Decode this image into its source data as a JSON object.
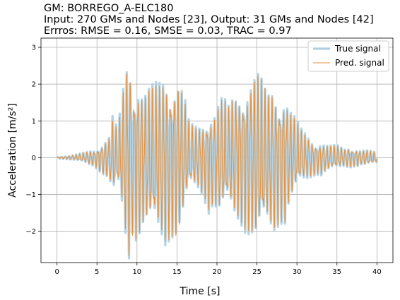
{
  "title_lines": [
    "GM: BORREGO_A-ELC180",
    "Input: 270 GMs and Nodes [23], Output: 31 GMs and Nodes [42]",
    "Errros: RMSE = 0.16, SMSE = 0.03, TRAC = 0.97"
  ],
  "chart_data": {
    "type": "line",
    "title": "GM: BORREGO_A-ELC180\nInput: 270 GMs and Nodes [23], Output: 31 GMs and Nodes [42]\nErrros: RMSE = 0.16, SMSE = 0.03, TRAC = 0.97",
    "xlabel": "Time [s]",
    "ylabel": "Acceleration [m/s²]",
    "xlim": [
      -2,
      42
    ],
    "ylim": [
      -2.85,
      3.25
    ],
    "x_ticks": [
      0,
      5,
      10,
      15,
      20,
      25,
      30,
      35,
      40
    ],
    "y_ticks": [
      -2,
      -1,
      0,
      1,
      2,
      3
    ],
    "x_tick_labels": [
      "0",
      "5",
      "10",
      "15",
      "20",
      "25",
      "30",
      "35",
      "40"
    ],
    "y_tick_labels": [
      "−2",
      "−1",
      "0",
      "1",
      "2",
      "3"
    ],
    "grid": true,
    "legend_position": "top-right",
    "series": [
      {
        "name": "True signal",
        "color": "#aecfe3",
        "x": [
          0,
          0.5,
          1,
          1.5,
          2,
          2.5,
          3,
          3.5,
          4,
          4.5,
          5,
          5.5,
          6,
          6.5,
          7,
          7.5,
          8,
          8.5,
          9,
          9.5,
          10,
          10.5,
          11,
          11.5,
          12,
          12.5,
          13,
          13.5,
          14,
          14.5,
          15,
          15.5,
          16,
          16.5,
          17,
          17.5,
          18,
          18.5,
          19,
          19.5,
          20,
          20.5,
          21,
          21.5,
          22,
          22.5,
          23,
          23.5,
          24,
          24.5,
          25,
          25.5,
          26,
          26.5,
          27,
          27.5,
          28,
          28.5,
          29,
          29.5,
          30,
          30.5,
          31,
          31.5,
          32,
          32.5,
          33,
          33.5,
          34,
          34.5,
          35,
          35.5,
          36,
          36.5,
          37,
          37.5,
          38,
          38.5,
          39,
          39.5,
          40
        ],
        "envelope": [
          0.02,
          0.03,
          0.04,
          0.05,
          0.07,
          0.09,
          0.12,
          0.15,
          0.2,
          0.22,
          0.3,
          0.4,
          0.5,
          0.6,
          1.25,
          0.8,
          1.4,
          2.4,
          3.0,
          2.0,
          2.4,
          2.0,
          1.9,
          2.0,
          2.1,
          2.2,
          2.3,
          2.5,
          2.3,
          2.2,
          2.2,
          2.0,
          1.6,
          1.0,
          0.9,
          0.9,
          1.0,
          1.2,
          1.5,
          1.3,
          1.5,
          1.7,
          1.6,
          1.4,
          1.7,
          1.8,
          1.9,
          2.1,
          2.2,
          2.3,
          2.45,
          2.3,
          2.0,
          1.9,
          2.1,
          1.9,
          1.8,
          1.9,
          1.4,
          1.2,
          1.0,
          0.8,
          0.7,
          0.6,
          0.5,
          0.45,
          0.5,
          0.4,
          0.35,
          0.35,
          0.35,
          0.3,
          0.25,
          0.3,
          0.25,
          0.25,
          0.2,
          0.22,
          0.2,
          0.18,
          0.15
        ],
        "note": "oscillating acceleration record, peak ≈ 3.0 m/s² near 9 s, min ≈ -2.6 m/s² near 9.5 s"
      },
      {
        "name": "Pred. signal",
        "color": "#e8913a",
        "x": [
          0,
          0.5,
          1,
          1.5,
          2,
          2.5,
          3,
          3.5,
          4,
          4.5,
          5,
          5.5,
          6,
          6.5,
          7,
          7.5,
          8,
          8.5,
          9,
          9.5,
          10,
          10.5,
          11,
          11.5,
          12,
          12.5,
          13,
          13.5,
          14,
          14.5,
          15,
          15.5,
          16,
          16.5,
          17,
          17.5,
          18,
          18.5,
          19,
          19.5,
          20,
          20.5,
          21,
          21.5,
          22,
          22.5,
          23,
          23.5,
          24,
          24.5,
          25,
          25.5,
          26,
          26.5,
          27,
          27.5,
          28,
          28.5,
          29,
          29.5,
          30,
          30.5,
          31,
          31.5,
          32,
          32.5,
          33,
          33.5,
          34,
          34.5,
          35,
          35.5,
          36,
          36.5,
          37,
          37.5,
          38,
          38.5,
          39,
          39.5,
          40
        ],
        "envelope": [
          0.02,
          0.03,
          0.04,
          0.05,
          0.07,
          0.09,
          0.11,
          0.14,
          0.18,
          0.2,
          0.28,
          0.38,
          0.48,
          0.58,
          1.1,
          0.75,
          1.3,
          2.3,
          2.95,
          2.1,
          2.3,
          2.0,
          1.85,
          1.95,
          2.0,
          2.1,
          2.2,
          2.4,
          2.25,
          2.15,
          2.3,
          2.0,
          1.5,
          0.95,
          0.85,
          0.85,
          0.95,
          1.1,
          1.4,
          1.25,
          1.45,
          1.65,
          1.55,
          1.35,
          1.65,
          1.75,
          1.85,
          2.0,
          2.1,
          2.25,
          2.4,
          2.25,
          2.0,
          1.85,
          2.05,
          1.85,
          1.75,
          1.85,
          1.35,
          1.15,
          0.95,
          0.75,
          0.65,
          0.55,
          0.48,
          0.42,
          0.45,
          0.38,
          0.33,
          0.33,
          0.33,
          0.28,
          0.24,
          0.28,
          0.24,
          0.24,
          0.19,
          0.2,
          0.19,
          0.17,
          0.15
        ],
        "note": "prediction closely follows the true signal"
      }
    ]
  }
}
